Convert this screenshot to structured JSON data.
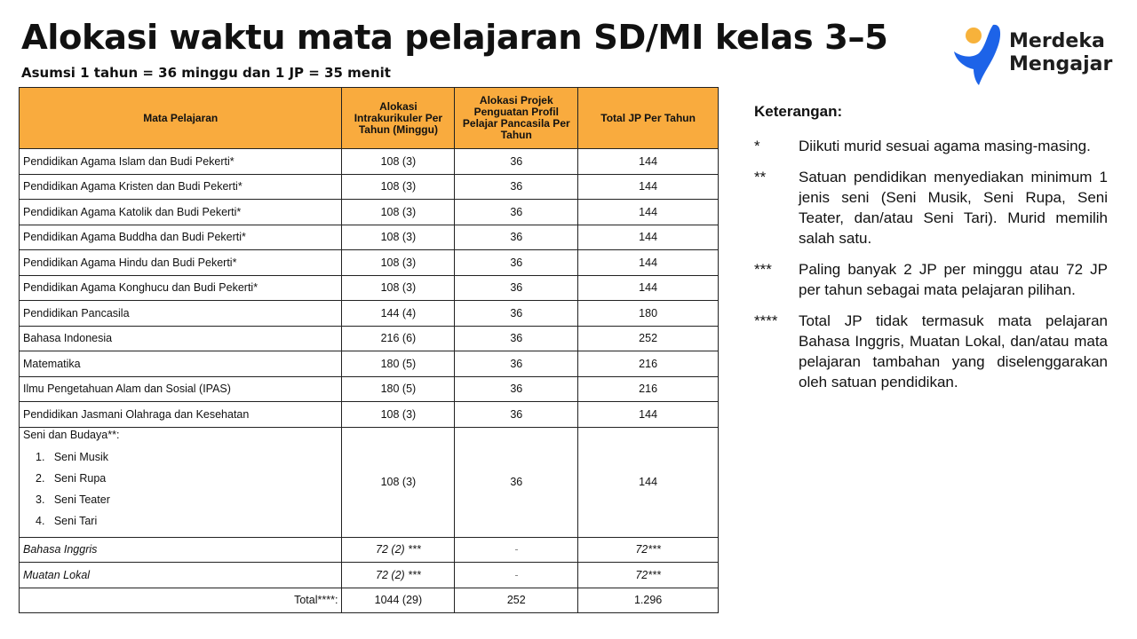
{
  "title": "Alokasi waktu mata pelajaran SD/MI kelas 3–5",
  "subtitle": "Asumsi 1 tahun = 36 minggu dan 1 JP = 35 menit",
  "logo": {
    "line1": "Merdeka",
    "line2": "Mengajar",
    "colors": {
      "blue": "#1d63e8",
      "yellow": "#f7b23b"
    }
  },
  "table": {
    "header_color": "#f9ab3e",
    "headers": [
      "Mata Pelajaran",
      "Alokasi Intrakurikuler Per Tahun (Minggu)",
      "Alokasi Projek Penguatan Profil Pelajar Pancasila Per Tahun",
      "Total JP Per Tahun"
    ],
    "rows": [
      [
        "Pendidikan Agama Islam dan Budi Pekerti*",
        "108 (3)",
        "36",
        "144"
      ],
      [
        "Pendidikan Agama Kristen dan Budi Pekerti*",
        "108 (3)",
        "36",
        "144"
      ],
      [
        "Pendidikan Agama Katolik dan Budi Pekerti*",
        "108 (3)",
        "36",
        "144"
      ],
      [
        "Pendidikan Agama Buddha dan Budi Pekerti*",
        "108 (3)",
        "36",
        "144"
      ],
      [
        "Pendidikan Agama Hindu dan Budi Pekerti*",
        "108 (3)",
        "36",
        "144"
      ],
      [
        "Pendidikan Agama Konghucu dan Budi Pekerti*",
        "108 (3)",
        "36",
        "144"
      ],
      [
        "Pendidikan Pancasila",
        "144 (4)",
        "36",
        "180"
      ],
      [
        "Bahasa Indonesia",
        "216 (6)",
        "36",
        "252"
      ],
      [
        "Matematika",
        "180 (5)",
        "36",
        "216"
      ],
      [
        "Ilmu Pengetahuan Alam dan Sosial (IPAS)",
        "180 (5)",
        "36",
        "216"
      ],
      [
        "Pendidikan Jasmani Olahraga dan Kesehatan",
        "108 (3)",
        "36",
        "144"
      ]
    ],
    "seni": {
      "label": "Seni dan Budaya**:",
      "items": [
        "1.   Seni Musik",
        "2.   Seni Rupa",
        "3.   Seni Teater",
        "4.   Seni Tari"
      ],
      "intra": "108 (3)",
      "projek": "36",
      "total": "144"
    },
    "optional": [
      [
        "Bahasa Inggris",
        "72 (2) ***",
        "-",
        "72***"
      ],
      [
        "Muatan Lokal",
        "72 (2) ***",
        "-",
        "72***"
      ]
    ],
    "total": [
      "Total****:",
      "1044 (29)",
      "252",
      "1.296"
    ]
  },
  "notes": {
    "heading": "Keterangan:",
    "items": [
      {
        "mark": "*",
        "text": "Diikuti murid sesuai agama masing-masing."
      },
      {
        "mark": "**",
        "text": "Satuan pendidikan menyediakan minimum 1 jenis seni (Seni Musik, Seni Rupa, Seni Teater, dan/atau Seni Tari). Murid memilih salah satu."
      },
      {
        "mark": "***",
        "text": "Paling banyak 2 JP per minggu atau 72 JP per tahun sebagai mata pelajaran pilihan."
      },
      {
        "mark": "****",
        "text": "Total JP tidak termasuk mata pelajaran Bahasa Inggris, Muatan Lokal, dan/atau mata pelajaran tambahan yang diselenggarakan oleh satuan pendidikan."
      }
    ]
  }
}
